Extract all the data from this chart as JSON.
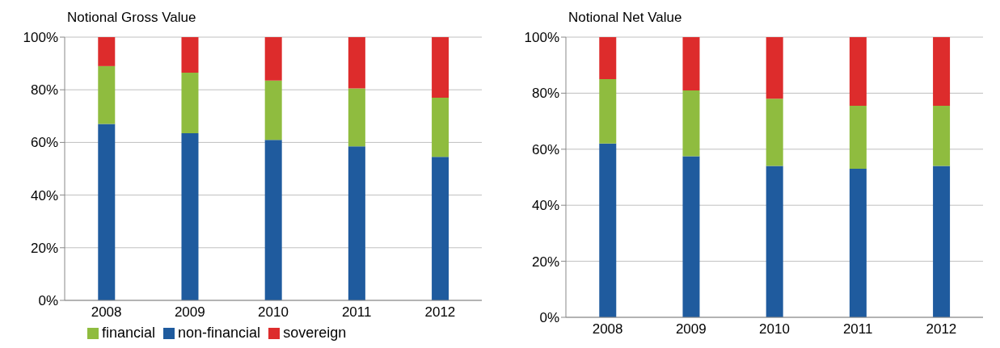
{
  "chart_data": [
    {
      "type": "bar",
      "title": "Notional Gross Value",
      "categories": [
        "2008",
        "2009",
        "2010",
        "2011",
        "2012"
      ],
      "stacked": true,
      "series": [
        {
          "name": "non-financial",
          "color": "#1f5b9e",
          "values": [
            67,
            63.5,
            61,
            58.5,
            54.5
          ]
        },
        {
          "name": "financial",
          "color": "#8fbc3f",
          "values": [
            22,
            23,
            22.5,
            22,
            22.5
          ]
        },
        {
          "name": "sovereign",
          "color": "#dd2c2c",
          "values": [
            11,
            13.5,
            16.5,
            19.5,
            23
          ]
        }
      ],
      "ylim": [
        0,
        100
      ],
      "yticks": [
        {
          "value": 0,
          "label": "0%"
        },
        {
          "value": 20,
          "label": "20%"
        },
        {
          "value": 40,
          "label": "40%"
        },
        {
          "value": 60,
          "label": "60%"
        },
        {
          "value": 80,
          "label": "80%"
        },
        {
          "value": 100,
          "label": "100%"
        }
      ],
      "grid": "y",
      "legend": "bottom"
    },
    {
      "type": "bar",
      "title": "Notional Net Value",
      "categories": [
        "2008",
        "2009",
        "2010",
        "2011",
        "2012"
      ],
      "stacked": true,
      "series": [
        {
          "color": "#1f5b9e",
          "values": [
            62,
            57.5,
            54,
            53,
            54
          ]
        },
        {
          "color": "#8fbc3f",
          "values": [
            23,
            23.5,
            24,
            22.5,
            21.5
          ]
        },
        {
          "color": "#dd2c2c",
          "values": [
            15,
            19,
            22,
            24.5,
            24.5
          ]
        }
      ],
      "ylim": [
        0,
        100
      ],
      "yticks": [
        {
          "value": 0,
          "label": "0%"
        },
        {
          "value": 20,
          "label": "20%"
        },
        {
          "value": 40,
          "label": "40%"
        },
        {
          "value": 60,
          "label": "60%"
        },
        {
          "value": 80,
          "label": "80%"
        },
        {
          "value": 100,
          "label": "100%"
        }
      ],
      "grid": "y"
    }
  ]
}
